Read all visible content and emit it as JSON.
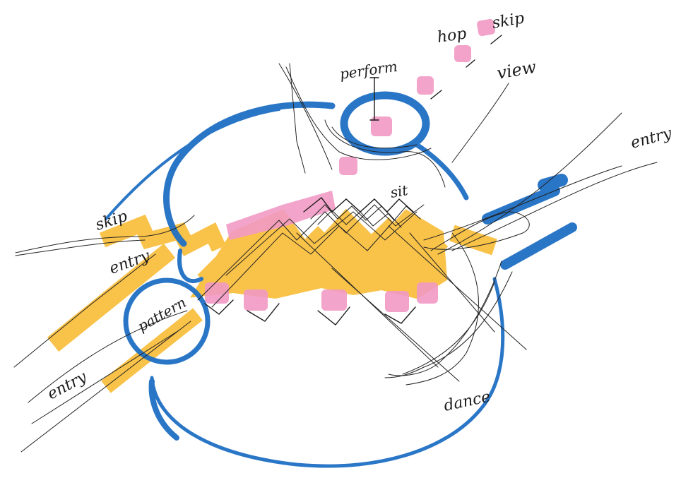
{
  "labels": {
    "hop": "hop",
    "skip_top": "skip",
    "perform": "perform",
    "view": "view",
    "entry_right": "entry",
    "sit": "sit",
    "skip_left": "skip",
    "entry_left": "entry",
    "pattern": "pattern",
    "entry_bottom_left": "entry",
    "dance": "dance"
  },
  "colors": {
    "marker_blue": "#1f6fc4",
    "marker_yellow": "#f9bd3a",
    "marker_pink": "#f29ac4",
    "pen_black": "#1c1c1c",
    "paper": "#ffffff"
  }
}
